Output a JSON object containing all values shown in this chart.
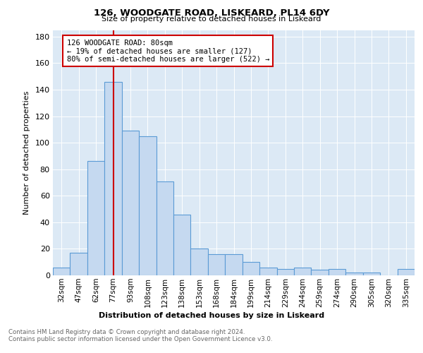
{
  "title1": "126, WOODGATE ROAD, LISKEARD, PL14 6DY",
  "title2": "Size of property relative to detached houses in Liskeard",
  "xlabel": "Distribution of detached houses by size in Liskeard",
  "ylabel": "Number of detached properties",
  "categories": [
    "32sqm",
    "47sqm",
    "62sqm",
    "77sqm",
    "93sqm",
    "108sqm",
    "123sqm",
    "138sqm",
    "153sqm",
    "168sqm",
    "184sqm",
    "199sqm",
    "214sqm",
    "229sqm",
    "244sqm",
    "259sqm",
    "274sqm",
    "290sqm",
    "305sqm",
    "320sqm",
    "335sqm"
  ],
  "values": [
    6,
    17,
    86,
    146,
    109,
    105,
    71,
    46,
    20,
    16,
    16,
    10,
    6,
    5,
    6,
    4,
    5,
    2,
    2,
    0,
    5
  ],
  "bar_color": "#c5d9f0",
  "bar_edge_color": "#5b9bd5",
  "vline_x": 3,
  "vline_color": "#cc0000",
  "annotation_lines": [
    "126 WOODGATE ROAD: 80sqm",
    "← 19% of detached houses are smaller (127)",
    "80% of semi-detached houses are larger (522) →"
  ],
  "annotation_box_color": "#cc0000",
  "ylim": [
    0,
    185
  ],
  "yticks": [
    0,
    20,
    40,
    60,
    80,
    100,
    120,
    140,
    160,
    180
  ],
  "footer_line1": "Contains HM Land Registry data © Crown copyright and database right 2024.",
  "footer_line2": "Contains public sector information licensed under the Open Government Licence v3.0.",
  "plot_bg_color": "#dce9f5"
}
